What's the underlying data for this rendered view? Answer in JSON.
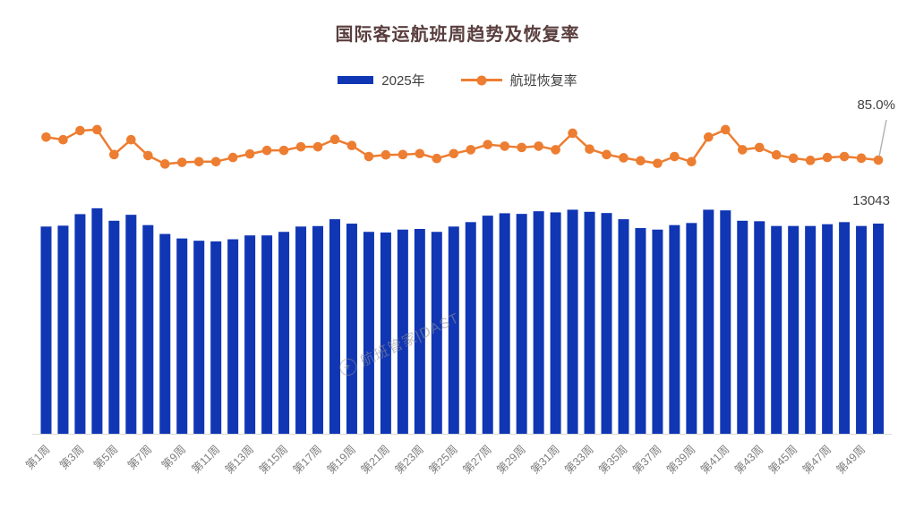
{
  "watermark": {
    "text": "航班管家|DAST"
  },
  "chart_data": {
    "type": "combo",
    "title": "国际客运航班周趋势及恢复率",
    "title_color": "#5a3e3e",
    "legend_position": "top-center",
    "grid": false,
    "y_axes_hidden": true,
    "x_axis": {
      "tick_labels_shown": "every second week (odd weeks 第1周 to 第49周)",
      "label_rotation_deg": -45,
      "label_color": "#7f7f7f"
    },
    "categories": [
      "第1周",
      "第2周",
      "第3周",
      "第4周",
      "第5周",
      "第6周",
      "第7周",
      "第8周",
      "第9周",
      "第10周",
      "第11周",
      "第12周",
      "第13周",
      "第14周",
      "第15周",
      "第16周",
      "第17周",
      "第18周",
      "第19周",
      "第20周",
      "第21周",
      "第22周",
      "第23周",
      "第24周",
      "第25周",
      "第26周",
      "第27周",
      "第28周",
      "第29周",
      "第30周",
      "第31周",
      "第32周",
      "第33周",
      "第34周",
      "第35周",
      "第36周",
      "第37周",
      "第38周",
      "第39周",
      "第40周",
      "第41周",
      "第42周",
      "第43周",
      "第44周",
      "第45周",
      "第46周",
      "第47周",
      "第48周",
      "第49周",
      "第50周"
    ],
    "series": [
      {
        "name": "2025年",
        "type": "bar",
        "color": "#1036b4",
        "axis": "left",
        "values": [
          12860,
          12915,
          13630,
          13995,
          13220,
          13590,
          12950,
          12400,
          12120,
          11980,
          11940,
          12070,
          12310,
          12310,
          12530,
          12860,
          12890,
          13315,
          13040,
          12530,
          12490,
          12670,
          12710,
          12530,
          12860,
          13135,
          13535,
          13685,
          13645,
          13810,
          13740,
          13905,
          13775,
          13700,
          13315,
          12765,
          12670,
          12950,
          13080,
          13905,
          13865,
          13220,
          13190,
          12895,
          12895,
          12895,
          13005,
          13135,
          12895,
          13043
        ]
      },
      {
        "name": "航班恢复率",
        "type": "line",
        "color": "#ed7d31",
        "axis": "right",
        "unit": "%",
        "values": [
          92.1,
          91.3,
          94.1,
          94.4,
          86.7,
          91.3,
          86.4,
          83.8,
          84.3,
          84.5,
          84.5,
          85.8,
          86.9,
          88.0,
          88.0,
          89.1,
          89.1,
          91.4,
          89.5,
          86.1,
          86.6,
          86.7,
          87.0,
          85.5,
          87.0,
          88.2,
          89.8,
          89.3,
          88.9,
          89.3,
          88.2,
          93.3,
          88.4,
          86.7,
          85.7,
          84.8,
          84.0,
          86.1,
          84.5,
          92.1,
          94.4,
          88.2,
          88.9,
          86.6,
          85.6,
          84.9,
          85.8,
          86.1,
          85.6,
          85.0
        ]
      }
    ],
    "annotations": {
      "last_rate_label": "85.0%",
      "last_bar_label": "13043"
    }
  }
}
